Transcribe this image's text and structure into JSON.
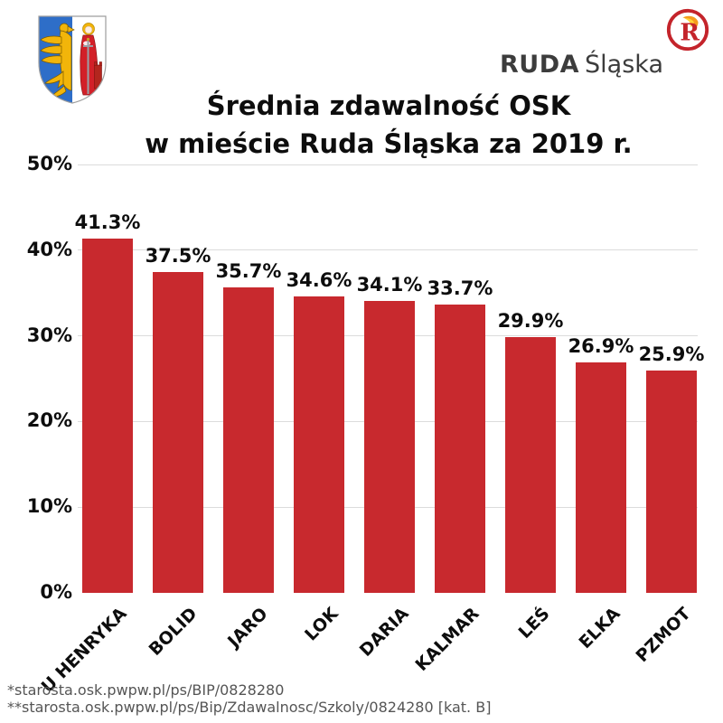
{
  "header": {
    "coat_of_arms_alt": "ruda-slaska-coat-of-arms",
    "logo": {
      "brand_bold": "RUDA",
      "brand_light": "Śląska",
      "monogram": "R"
    }
  },
  "title": {
    "line1": "Średnia zdawalność OSK",
    "line2": "w mieście Ruda Śląska za 2019 r."
  },
  "chart_data": {
    "type": "bar",
    "title": "Średnia zdawalność OSK w mieście Ruda Śląska za 2019 r.",
    "categories": [
      "U HENRYKA",
      "BOLID",
      "JARO",
      "LOK",
      "DARIA",
      "KALMAR",
      "LEŚ",
      "ELKA",
      "PZMOT"
    ],
    "values": [
      41.3,
      37.5,
      35.7,
      34.6,
      34.1,
      33.7,
      29.9,
      26.9,
      25.9
    ],
    "value_labels": [
      "41.3%",
      "37.5%",
      "35.7%",
      "34.6%",
      "34.1%",
      "33.7%",
      "29.9%",
      "26.9%",
      "25.9%"
    ],
    "xlabel": "",
    "ylabel": "",
    "ylim": [
      0,
      50
    ],
    "yticks": [
      0,
      10,
      20,
      30,
      40,
      50
    ],
    "ytick_labels": [
      "0%",
      "10%",
      "20%",
      "30%",
      "40%",
      "50%"
    ],
    "grid": true,
    "legend": false,
    "bar_color": "#c8292e"
  },
  "footer": {
    "source1": "*starosta.osk.pwpw.pl/ps/BIP/0828280",
    "source2": "**starosta.osk.pwpw.pl/ps/Bip/Zdawalnosc/Szkoly/0824280 [kat. B]"
  },
  "colors": {
    "bar": "#c8292e",
    "gridline": "#dcdcdc",
    "text": "#0d0d0d",
    "footer_text": "#555555",
    "logo_red": "#c4242b",
    "logo_orange": "#f59b1e",
    "logo_dark": "#3c3c3c",
    "coa_blue": "#2e6ec8",
    "coa_gold": "#f2b50a",
    "coa_red": "#d22028"
  }
}
